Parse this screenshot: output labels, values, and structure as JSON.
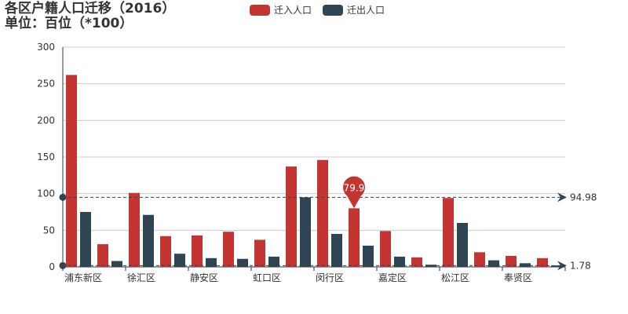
{
  "title": {
    "line1": "各区户籍人口迁移（2016）",
    "line2": "单位：百位（*100）"
  },
  "legend": [
    {
      "name": "迁入人口",
      "color": "#c23531"
    },
    {
      "name": "迁出人口",
      "color": "#2f4554"
    }
  ],
  "chart_data": {
    "type": "bar",
    "title": "各区户籍人口迁移（2016）",
    "subtitle": "单位：百位（*100）",
    "category_labels_shown": [
      "浦东新区",
      "徐汇区",
      "静安区",
      "虹口区",
      "闵行区",
      "嘉定区",
      "松江区",
      "奉贤区"
    ],
    "categories_count": 16,
    "series": [
      {
        "name": "迁入人口",
        "color": "#c23531",
        "values": [
          262,
          31,
          101,
          42,
          43,
          48,
          37,
          137,
          146,
          80,
          49,
          13,
          94,
          20,
          15,
          12
        ]
      },
      {
        "name": "迁出人口",
        "color": "#2f4554",
        "values": [
          75,
          8,
          71,
          18,
          12,
          11,
          14,
          95,
          45,
          29,
          14,
          3,
          60,
          9,
          5,
          2
        ]
      }
    ],
    "ylim": [
      0,
      300
    ],
    "yticks": [
      0,
      50,
      100,
      150,
      200,
      250,
      300
    ],
    "grid": true,
    "legend_position": "top",
    "mark_point": {
      "series": "迁入人口",
      "index": 9,
      "label": "79.9"
    },
    "mark_lines": [
      {
        "label": "94.98",
        "value": 94.98
      },
      {
        "label": "1.78",
        "value": 1.78
      }
    ]
  }
}
